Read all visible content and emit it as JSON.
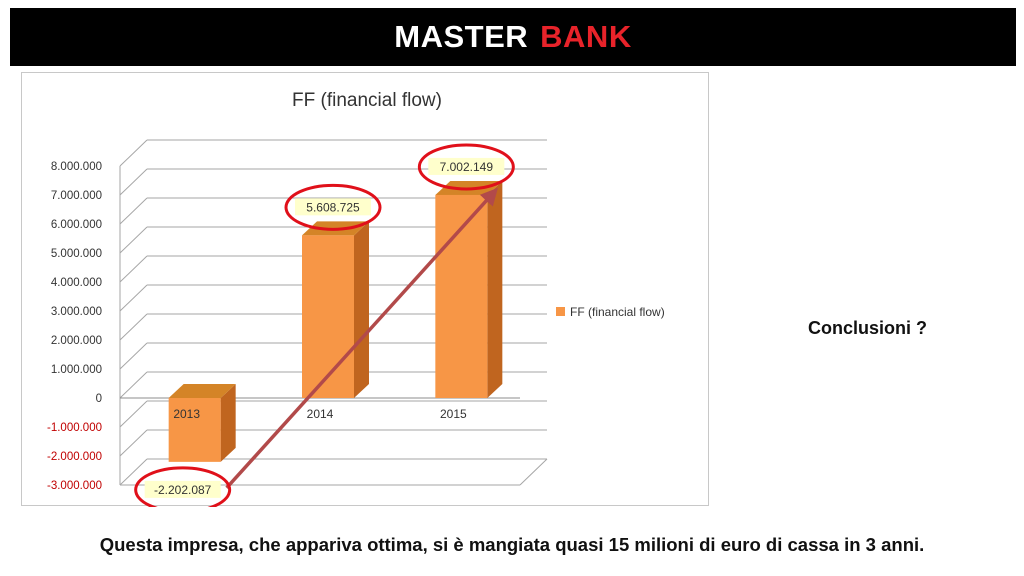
{
  "header": {
    "title_part1": "MASTER",
    "title_part2": "BANK"
  },
  "conclusion_text": "Conclusioni ?",
  "caption": "Questa impresa, che appariva ottima, si è mangiata quasi 15 milioni di euro di cassa in 3 anni.",
  "colors": {
    "bar_front": "#f79646",
    "bar_side": "#c0651f",
    "bar_top": "#d48427",
    "highlight": "#ffffcc",
    "circle": "#e0101a",
    "arrow": "#b24a4a",
    "negative_tick": "#c00000"
  },
  "chart_data": {
    "type": "bar",
    "title": "FF (financial flow)",
    "categories": [
      "2013",
      "2014",
      "2015"
    ],
    "series": [
      {
        "name": "FF (financial flow)",
        "values": [
          -2202087,
          5608725,
          7002149
        ]
      }
    ],
    "data_labels": [
      "-2.202.087",
      "5.608.725",
      "7.002.149"
    ],
    "y_ticks": [
      8000000,
      7000000,
      6000000,
      5000000,
      4000000,
      3000000,
      2000000,
      1000000,
      0,
      -1000000,
      -2000000,
      -3000000
    ],
    "y_tick_labels": [
      "8.000.000",
      "7.000.000",
      "6.000.000",
      "5.000.000",
      "4.000.000",
      "3.000.000",
      "2.000.000",
      "1.000.000",
      "0",
      "-1.000.000",
      "-2.000.000",
      "-3.000.000"
    ],
    "ylim": [
      -3000000,
      8000000
    ],
    "grid": true,
    "legend_position": "right",
    "three_d": true
  }
}
